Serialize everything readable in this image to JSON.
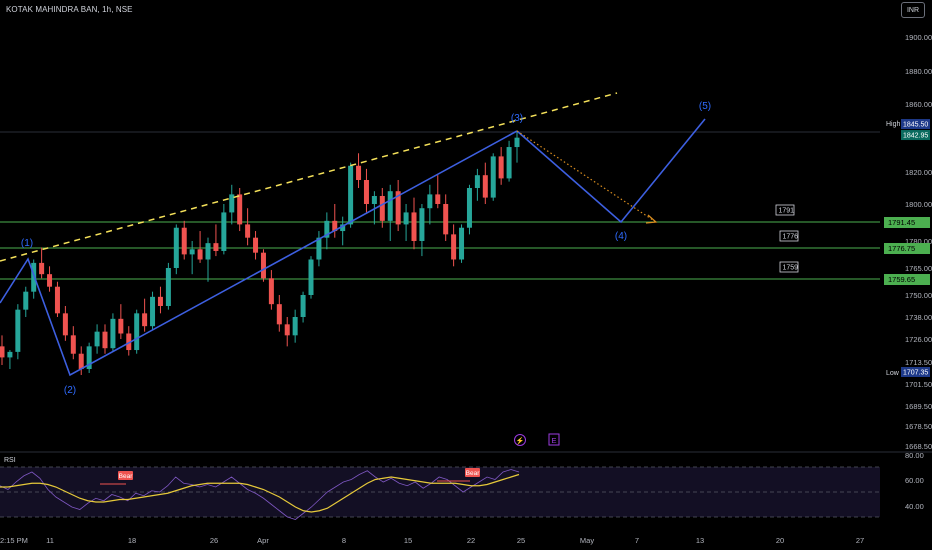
{
  "header": {
    "title": "KOTAK MAHINDRA BAN, 1h, NSE",
    "currency": "INR"
  },
  "colors": {
    "up": "#26a69a",
    "down": "#ef5350",
    "trend": "#3d5fe0",
    "dash": "#f5e15a",
    "hline": "#4caf50",
    "wave_label": "#2f6bff",
    "proj_dots": "#d98d1f",
    "rsi_line": "#7e57c2",
    "rsi_ma": "#e6c93a",
    "bear": "#ef5350",
    "axis_text": "#b2b5be",
    "markers": "#9b3ce0"
  },
  "chart_data": {
    "type": "candlestick",
    "symbol": "KOTAK MAHINDRA BAN",
    "interval": "1h",
    "exchange": "NSE",
    "ylim": [
      1664,
      1910
    ],
    "y_ticks": [
      1900.0,
      1880.0,
      1860.0,
      1820.0,
      1800.0,
      1780.0,
      1765.0,
      1750.0,
      1738.0,
      1726.0,
      1713.5,
      1701.5,
      1689.5,
      1678.5,
      1668.5
    ],
    "x_ticks": [
      "2:15 PM",
      "11",
      "18",
      "26",
      "Apr",
      "8",
      "15",
      "22",
      "25",
      "May",
      "7",
      "13",
      "20",
      "27"
    ],
    "candles": [
      {
        "o": 1722,
        "h": 1728,
        "l": 1712,
        "c": 1716
      },
      {
        "o": 1716,
        "h": 1720,
        "l": 1710,
        "c": 1719
      },
      {
        "o": 1719,
        "h": 1745,
        "l": 1715,
        "c": 1742
      },
      {
        "o": 1742,
        "h": 1755,
        "l": 1738,
        "c": 1752
      },
      {
        "o": 1752,
        "h": 1770,
        "l": 1748,
        "c": 1768
      },
      {
        "o": 1768,
        "h": 1777,
        "l": 1760,
        "c": 1762
      },
      {
        "o": 1762,
        "h": 1766,
        "l": 1752,
        "c": 1755
      },
      {
        "o": 1755,
        "h": 1758,
        "l": 1738,
        "c": 1740
      },
      {
        "o": 1740,
        "h": 1744,
        "l": 1725,
        "c": 1728
      },
      {
        "o": 1728,
        "h": 1733,
        "l": 1715,
        "c": 1718
      },
      {
        "o": 1718,
        "h": 1722,
        "l": 1707,
        "c": 1710
      },
      {
        "o": 1710,
        "h": 1724,
        "l": 1708,
        "c": 1722
      },
      {
        "o": 1722,
        "h": 1734,
        "l": 1718,
        "c": 1730
      },
      {
        "o": 1730,
        "h": 1734,
        "l": 1718,
        "c": 1721
      },
      {
        "o": 1721,
        "h": 1740,
        "l": 1719,
        "c": 1737
      },
      {
        "o": 1737,
        "h": 1745,
        "l": 1726,
        "c": 1729
      },
      {
        "o": 1729,
        "h": 1733,
        "l": 1717,
        "c": 1720
      },
      {
        "o": 1720,
        "h": 1742,
        "l": 1718,
        "c": 1740
      },
      {
        "o": 1740,
        "h": 1748,
        "l": 1730,
        "c": 1733
      },
      {
        "o": 1733,
        "h": 1752,
        "l": 1731,
        "c": 1749
      },
      {
        "o": 1749,
        "h": 1755,
        "l": 1740,
        "c": 1744
      },
      {
        "o": 1744,
        "h": 1768,
        "l": 1742,
        "c": 1765
      },
      {
        "o": 1765,
        "h": 1790,
        "l": 1762,
        "c": 1788
      },
      {
        "o": 1788,
        "h": 1792,
        "l": 1770,
        "c": 1773
      },
      {
        "o": 1773,
        "h": 1780,
        "l": 1762,
        "c": 1776
      },
      {
        "o": 1776,
        "h": 1786,
        "l": 1768,
        "c": 1770
      },
      {
        "o": 1770,
        "h": 1782,
        "l": 1758,
        "c": 1779
      },
      {
        "o": 1779,
        "h": 1790,
        "l": 1772,
        "c": 1775
      },
      {
        "o": 1775,
        "h": 1800,
        "l": 1773,
        "c": 1796
      },
      {
        "o": 1796,
        "h": 1812,
        "l": 1790,
        "c": 1806
      },
      {
        "o": 1806,
        "h": 1810,
        "l": 1786,
        "c": 1790
      },
      {
        "o": 1790,
        "h": 1798,
        "l": 1778,
        "c": 1782
      },
      {
        "o": 1782,
        "h": 1786,
        "l": 1770,
        "c": 1774
      },
      {
        "o": 1774,
        "h": 1776,
        "l": 1758,
        "c": 1760
      },
      {
        "o": 1760,
        "h": 1764,
        "l": 1742,
        "c": 1745
      },
      {
        "o": 1745,
        "h": 1750,
        "l": 1730,
        "c": 1734
      },
      {
        "o": 1734,
        "h": 1738,
        "l": 1722,
        "c": 1728
      },
      {
        "o": 1728,
        "h": 1742,
        "l": 1724,
        "c": 1738
      },
      {
        "o": 1738,
        "h": 1752,
        "l": 1735,
        "c": 1750
      },
      {
        "o": 1750,
        "h": 1772,
        "l": 1748,
        "c": 1770
      },
      {
        "o": 1770,
        "h": 1786,
        "l": 1766,
        "c": 1782
      },
      {
        "o": 1782,
        "h": 1796,
        "l": 1776,
        "c": 1792
      },
      {
        "o": 1792,
        "h": 1800,
        "l": 1782,
        "c": 1786
      },
      {
        "o": 1786,
        "h": 1794,
        "l": 1778,
        "c": 1790
      },
      {
        "o": 1790,
        "h": 1826,
        "l": 1788,
        "c": 1824
      },
      {
        "o": 1824,
        "h": 1832,
        "l": 1810,
        "c": 1815
      },
      {
        "o": 1815,
        "h": 1822,
        "l": 1796,
        "c": 1800
      },
      {
        "o": 1800,
        "h": 1808,
        "l": 1790,
        "c": 1805
      },
      {
        "o": 1805,
        "h": 1810,
        "l": 1788,
        "c": 1792
      },
      {
        "o": 1792,
        "h": 1812,
        "l": 1780,
        "c": 1808
      },
      {
        "o": 1808,
        "h": 1815,
        "l": 1786,
        "c": 1790
      },
      {
        "o": 1790,
        "h": 1800,
        "l": 1780,
        "c": 1796
      },
      {
        "o": 1796,
        "h": 1804,
        "l": 1776,
        "c": 1780
      },
      {
        "o": 1780,
        "h": 1800,
        "l": 1772,
        "c": 1798
      },
      {
        "o": 1798,
        "h": 1812,
        "l": 1790,
        "c": 1806
      },
      {
        "o": 1806,
        "h": 1818,
        "l": 1798,
        "c": 1800
      },
      {
        "o": 1800,
        "h": 1806,
        "l": 1780,
        "c": 1784
      },
      {
        "o": 1784,
        "h": 1790,
        "l": 1766,
        "c": 1770
      },
      {
        "o": 1770,
        "h": 1790,
        "l": 1768,
        "c": 1788
      },
      {
        "o": 1788,
        "h": 1812,
        "l": 1784,
        "c": 1810
      },
      {
        "o": 1810,
        "h": 1822,
        "l": 1802,
        "c": 1818
      },
      {
        "o": 1818,
        "h": 1826,
        "l": 1800,
        "c": 1804
      },
      {
        "o": 1804,
        "h": 1832,
        "l": 1802,
        "c": 1830
      },
      {
        "o": 1830,
        "h": 1836,
        "l": 1812,
        "c": 1816
      },
      {
        "o": 1816,
        "h": 1840,
        "l": 1814,
        "c": 1836
      },
      {
        "o": 1836,
        "h": 1846,
        "l": 1826,
        "c": 1842
      }
    ],
    "elliott_wave": [
      {
        "label": "(1)",
        "time_index": 2.5,
        "price": 1773
      },
      {
        "label": "(2)",
        "time_index": 10.0,
        "price": 1707
      },
      {
        "label": "(3)",
        "time_index": 65.5,
        "price": 1846
      },
      {
        "label": "(4)",
        "time_index": 76.5,
        "price": 1791
      },
      {
        "label": "(5)",
        "time_index": 85.5,
        "price": 1848
      }
    ],
    "levels": [
      {
        "price": 1791.45,
        "label": "1791",
        "axis_label": "1791.45"
      },
      {
        "price": 1776.75,
        "label": "1776",
        "axis_label": "1776.75"
      },
      {
        "price": 1759.65,
        "label": "1759",
        "axis_label": "1759.65"
      }
    ],
    "high_marker": {
      "label": "High",
      "value": "1845.50"
    },
    "last_price": {
      "value": "1842.95"
    },
    "low_marker": {
      "label": "Low",
      "value": "1707.35"
    },
    "rsi": {
      "label": "RSI",
      "ylim": [
        20,
        80
      ],
      "y_ticks": [
        "80.00",
        "60.00",
        "40.00"
      ],
      "bands": [
        70,
        50,
        30
      ],
      "values": [
        55,
        52,
        58,
        63,
        66,
        61,
        52,
        46,
        42,
        38,
        36,
        41,
        45,
        43,
        48,
        46,
        43,
        49,
        47,
        51,
        50,
        55,
        62,
        57,
        56,
        54,
        56,
        54,
        58,
        62,
        57,
        52,
        49,
        45,
        40,
        35,
        30,
        28,
        33,
        38,
        44,
        50,
        54,
        58,
        60,
        64,
        67,
        62,
        58,
        61,
        57,
        55,
        58,
        53,
        57,
        62,
        60,
        55,
        50,
        54,
        58,
        62,
        60,
        66,
        68,
        66
      ],
      "ma_values": [
        54,
        54,
        55,
        56,
        57,
        57,
        56,
        54,
        51,
        48,
        45,
        43,
        42,
        42,
        43,
        44,
        44,
        45,
        46,
        47,
        48,
        49,
        51,
        53,
        55,
        56,
        57,
        57,
        57,
        57,
        57,
        56,
        54,
        52,
        49,
        46,
        42,
        38,
        35,
        34,
        35,
        37,
        41,
        45,
        49,
        53,
        57,
        60,
        61,
        62,
        61,
        60,
        59,
        58,
        57,
        57,
        57,
        57,
        56,
        55,
        55,
        56,
        58,
        60,
        62,
        64
      ],
      "bear_markers": [
        "Bear",
        "Bear"
      ]
    },
    "event_markers": [
      "⚡",
      "E"
    ]
  }
}
